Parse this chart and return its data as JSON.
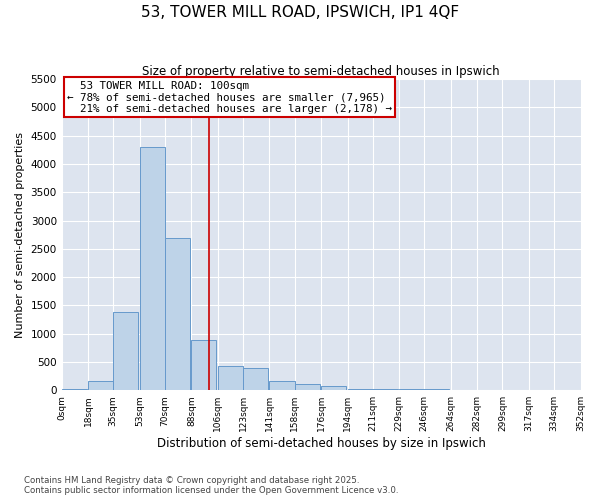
{
  "title": "53, TOWER MILL ROAD, IPSWICH, IP1 4QF",
  "subtitle": "Size of property relative to semi-detached houses in Ipswich",
  "xlabel": "Distribution of semi-detached houses by size in Ipswich",
  "ylabel": "Number of semi-detached properties",
  "property_label": "53 TOWER MILL ROAD: 100sqm",
  "pct_smaller": 78,
  "count_smaller": 7965,
  "pct_larger": 21,
  "count_larger": 2178,
  "bin_labels": [
    "0sqm",
    "18sqm",
    "35sqm",
    "53sqm",
    "70sqm",
    "88sqm",
    "106sqm",
    "123sqm",
    "141sqm",
    "158sqm",
    "176sqm",
    "194sqm",
    "211sqm",
    "229sqm",
    "246sqm",
    "264sqm",
    "282sqm",
    "299sqm",
    "317sqm",
    "334sqm",
    "352sqm"
  ],
  "bin_left_edges": [
    0,
    18,
    35,
    53,
    70,
    88,
    106,
    123,
    141,
    158,
    176,
    194,
    211,
    229,
    246,
    264,
    282,
    299,
    317,
    334
  ],
  "bin_width": 17,
  "bar_values": [
    30,
    165,
    1380,
    4300,
    2700,
    880,
    420,
    400,
    165,
    110,
    80,
    30,
    30,
    30,
    30,
    0,
    0,
    0,
    0,
    0
  ],
  "bar_color": "#bed3e8",
  "bar_edge_color": "#6699cc",
  "vline_x": 100,
  "vline_color": "#cc0000",
  "ylim": [
    0,
    5500
  ],
  "yticks": [
    0,
    500,
    1000,
    1500,
    2000,
    2500,
    3000,
    3500,
    4000,
    4500,
    5000,
    5500
  ],
  "bg_color": "#dde4ef",
  "grid_color": "#ffffff",
  "footnote": "Contains HM Land Registry data © Crown copyright and database right 2025.\nContains public sector information licensed under the Open Government Licence v3.0."
}
